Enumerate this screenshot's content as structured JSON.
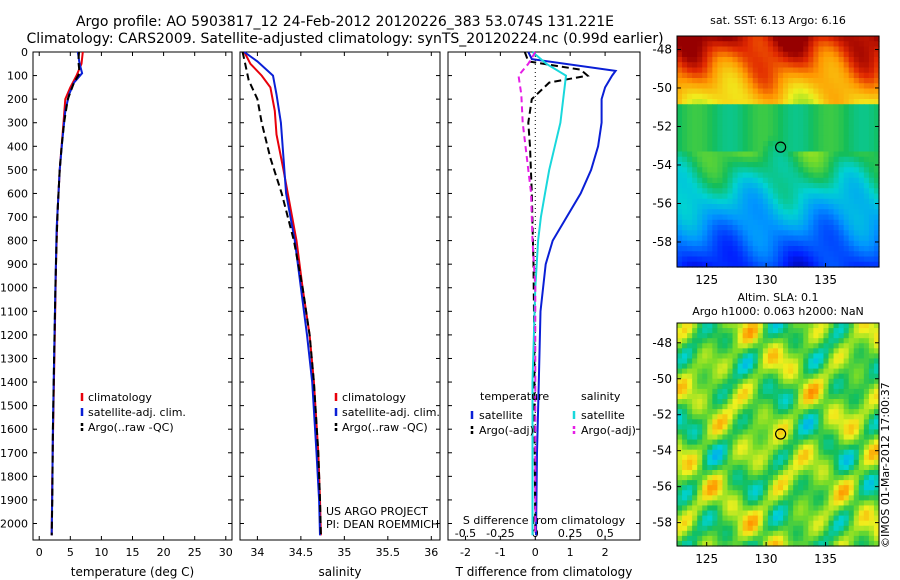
{
  "title": {
    "line1": "Argo profile: AO 5903817_12 24-Feb-2012 20120226_383 53.074S 131.221E",
    "line2": "Climatology: CARS2009. Satellite-adjusted climatology: synTS_20120224.nc (0.99d earlier)"
  },
  "colors": {
    "climatology": "#e8000b",
    "satellite": "#0a1fd6",
    "argo": "#000000",
    "sat_salinity": "#19d8dc",
    "argo_salinity": "#e61ee6"
  },
  "depth_axis": {
    "ticks": [
      "0",
      "100",
      "200",
      "300",
      "400",
      "500",
      "600",
      "700",
      "800",
      "900",
      "1000",
      "1100",
      "1200",
      "1300",
      "1400",
      "1500",
      "1600",
      "1700",
      "1800",
      "1900",
      "2000"
    ],
    "range": [
      0,
      2070
    ]
  },
  "chart_data": [
    {
      "type": "line",
      "name": "temperature",
      "xlabel": "temperature (deg C)",
      "xlim": [
        -1,
        31
      ],
      "xticks": [
        "0",
        "5",
        "10",
        "15",
        "20",
        "25",
        "30"
      ],
      "ylim": [
        2070,
        0
      ],
      "legend": [
        "climatology",
        "satellite-adj. clim.",
        "Argo(..raw -QC)"
      ],
      "series": [
        {
          "name": "climatology",
          "points": [
            [
              7.0,
              0
            ],
            [
              6.8,
              50
            ],
            [
              6.0,
              100
            ],
            [
              5.0,
              150
            ],
            [
              4.2,
              200
            ],
            [
              3.9,
              300
            ],
            [
              3.6,
              400
            ],
            [
              3.3,
              500
            ],
            [
              3.1,
              600
            ],
            [
              2.9,
              700
            ],
            [
              2.7,
              900
            ],
            [
              2.5,
              1200
            ],
            [
              2.3,
              1500
            ],
            [
              2.1,
              1800
            ],
            [
              2.0,
              2050
            ]
          ]
        },
        {
          "name": "satellite-adj. clim.",
          "points": [
            [
              6.2,
              0
            ],
            [
              6.5,
              50
            ],
            [
              6.9,
              90
            ],
            [
              5.6,
              130
            ],
            [
              4.8,
              180
            ],
            [
              4.2,
              250
            ],
            [
              3.7,
              380
            ],
            [
              3.3,
              500
            ],
            [
              3.1,
              600
            ],
            [
              2.8,
              750
            ],
            [
              2.6,
              1000
            ],
            [
              2.4,
              1300
            ],
            [
              2.2,
              1600
            ],
            [
              2.1,
              1850
            ],
            [
              2.0,
              2050
            ]
          ]
        },
        {
          "name": "Argo(..raw -QC)",
          "points": [
            [
              6.4,
              0
            ],
            [
              6.3,
              40
            ],
            [
              6.5,
              90
            ],
            [
              5.6,
              130
            ],
            [
              4.6,
              200
            ],
            [
              4.0,
              300
            ],
            [
              3.6,
              400
            ],
            [
              3.3,
              500
            ],
            [
              3.0,
              650
            ],
            [
              2.8,
              800
            ],
            [
              2.6,
              1000
            ],
            [
              2.4,
              1300
            ],
            [
              2.2,
              1600
            ],
            [
              2.1,
              1900
            ],
            [
              2.0,
              2050
            ]
          ]
        }
      ]
    },
    {
      "type": "line",
      "name": "salinity",
      "xlabel": "salinity",
      "xlim": [
        33.8,
        36.1
      ],
      "xticks": [
        "34",
        "34.5",
        "35",
        "35.5",
        "36"
      ],
      "ylim": [
        2070,
        0
      ],
      "legend": [
        "climatology",
        "satellite-adj. clim.",
        "Argo(..raw -QC)"
      ],
      "annotation": [
        "US ARGO PROJECT",
        "PI: DEAN ROEMMICH"
      ],
      "series": [
        {
          "name": "climatology",
          "points": [
            [
              33.85,
              0
            ],
            [
              33.92,
              50
            ],
            [
              34.05,
              100
            ],
            [
              34.15,
              150
            ],
            [
              34.2,
              250
            ],
            [
              34.22,
              350
            ],
            [
              34.3,
              500
            ],
            [
              34.35,
              600
            ],
            [
              34.45,
              800
            ],
            [
              34.52,
              1000
            ],
            [
              34.6,
              1200
            ],
            [
              34.65,
              1400
            ],
            [
              34.7,
              1700
            ],
            [
              34.72,
              1900
            ],
            [
              34.73,
              2050
            ]
          ]
        },
        {
          "name": "satellite-adj. clim.",
          "points": [
            [
              33.85,
              0
            ],
            [
              34.0,
              40
            ],
            [
              34.18,
              100
            ],
            [
              34.22,
              180
            ],
            [
              34.27,
              300
            ],
            [
              34.3,
              450
            ],
            [
              34.33,
              600
            ],
            [
              34.43,
              800
            ],
            [
              34.5,
              1000
            ],
            [
              34.57,
              1200
            ],
            [
              34.63,
              1400
            ],
            [
              34.68,
              1700
            ],
            [
              34.71,
              1900
            ],
            [
              34.72,
              2050
            ]
          ]
        },
        {
          "name": "Argo(..raw -QC)",
          "points": [
            [
              33.83,
              0
            ],
            [
              33.86,
              50
            ],
            [
              33.9,
              120
            ],
            [
              34.0,
              200
            ],
            [
              34.05,
              300
            ],
            [
              34.15,
              450
            ],
            [
              34.28,
              600
            ],
            [
              34.42,
              800
            ],
            [
              34.52,
              1000
            ],
            [
              34.6,
              1200
            ],
            [
              34.65,
              1400
            ],
            [
              34.7,
              1700
            ],
            [
              34.72,
              1900
            ],
            [
              34.73,
              2050
            ]
          ]
        }
      ]
    },
    {
      "type": "line",
      "name": "difference",
      "xlabel": "T difference from climatology",
      "xlabel_top": "S difference from climatology",
      "xlim": [
        -2.5,
        3.0
      ],
      "xticks": [
        "-2",
        "-1",
        "0",
        "1",
        "2"
      ],
      "sticks": [
        "-0.5",
        "-0.25",
        "0",
        "0.25",
        "0.5"
      ],
      "ylim": [
        2070,
        0
      ],
      "legend_headers": [
        "temperature",
        "salinity"
      ],
      "legend": [
        "satellite",
        "Argo(-adj)",
        "satellite",
        "Argo(-adj)"
      ],
      "series": [
        {
          "name": "T satellite",
          "points": [
            [
              -0.2,
              0
            ],
            [
              -0.1,
              30
            ],
            [
              2.3,
              80
            ],
            [
              2.2,
              100
            ],
            [
              2.0,
              150
            ],
            [
              1.9,
              200
            ],
            [
              1.9,
              300
            ],
            [
              1.8,
              400
            ],
            [
              1.6,
              500
            ],
            [
              1.3,
              600
            ],
            [
              0.9,
              700
            ],
            [
              0.5,
              800
            ],
            [
              0.3,
              900
            ],
            [
              0.15,
              1100
            ],
            [
              0.1,
              1400
            ],
            [
              0.05,
              1700
            ],
            [
              0.02,
              2050
            ]
          ]
        },
        {
          "name": "T Argo(-adj)",
          "points": [
            [
              -0.3,
              0
            ],
            [
              -0.2,
              40
            ],
            [
              1.3,
              75
            ],
            [
              1.5,
              100
            ],
            [
              0.4,
              130
            ],
            [
              -0.1,
              200
            ],
            [
              -0.2,
              300
            ],
            [
              -0.15,
              400
            ],
            [
              -0.1,
              600
            ],
            [
              -0.05,
              900
            ],
            [
              -0.03,
              1200
            ],
            [
              -0.02,
              1600
            ],
            [
              0,
              2050
            ]
          ]
        },
        {
          "name": "S satellite",
          "points": [
            [
              -0.02,
              0
            ],
            [
              0.08,
              50
            ],
            [
              0.22,
              100
            ],
            [
              0.2,
              200
            ],
            [
              0.18,
              300
            ],
            [
              0.14,
              400
            ],
            [
              0.1,
              500
            ],
            [
              0.07,
              600
            ],
            [
              0.04,
              700
            ],
            [
              0.02,
              800
            ],
            [
              0.0,
              1000
            ],
            [
              -0.02,
              1400
            ],
            [
              -0.02,
              1700
            ],
            [
              -0.02,
              2050
            ]
          ]
        },
        {
          "name": "S Argo(-adj)",
          "points": [
            [
              0.0,
              0
            ],
            [
              -0.05,
              50
            ],
            [
              -0.12,
              100
            ],
            [
              -0.1,
              180
            ],
            [
              -0.09,
              300
            ],
            [
              -0.06,
              450
            ],
            [
              -0.03,
              600
            ],
            [
              -0.02,
              800
            ],
            [
              0,
              1000
            ],
            [
              0,
              1400
            ],
            [
              0,
              1700
            ],
            [
              0,
              2050
            ]
          ]
        }
      ]
    },
    {
      "type": "heatmap",
      "name": "sat-sst",
      "title": "sat. SST: 6.13 Argo: 6.16",
      "xlim": [
        122.5,
        139.5
      ],
      "ylim": [
        -59.3,
        -47.3
      ],
      "xticks": [
        "125",
        "130",
        "135"
      ],
      "yticks": [
        "-48",
        "-50",
        "-52",
        "-54",
        "-56",
        "-58"
      ],
      "argo_position": [
        131.221,
        -53.074
      ]
    },
    {
      "type": "heatmap",
      "name": "altim-sla",
      "title_line1": "Altim. SLA: 0.1",
      "title_line2": "Argo h1000: 0.063 h2000: NaN",
      "xlim": [
        122.5,
        139.5
      ],
      "ylim": [
        -59.3,
        -46.9
      ],
      "xticks": [
        "125",
        "130",
        "135"
      ],
      "yticks": [
        "-48",
        "-50",
        "-52",
        "-54",
        "-56",
        "-58"
      ],
      "argo_position": [
        131.221,
        -53.074
      ]
    }
  ],
  "watermark": "©IMOS 01-Mar-2012 17:00:37"
}
